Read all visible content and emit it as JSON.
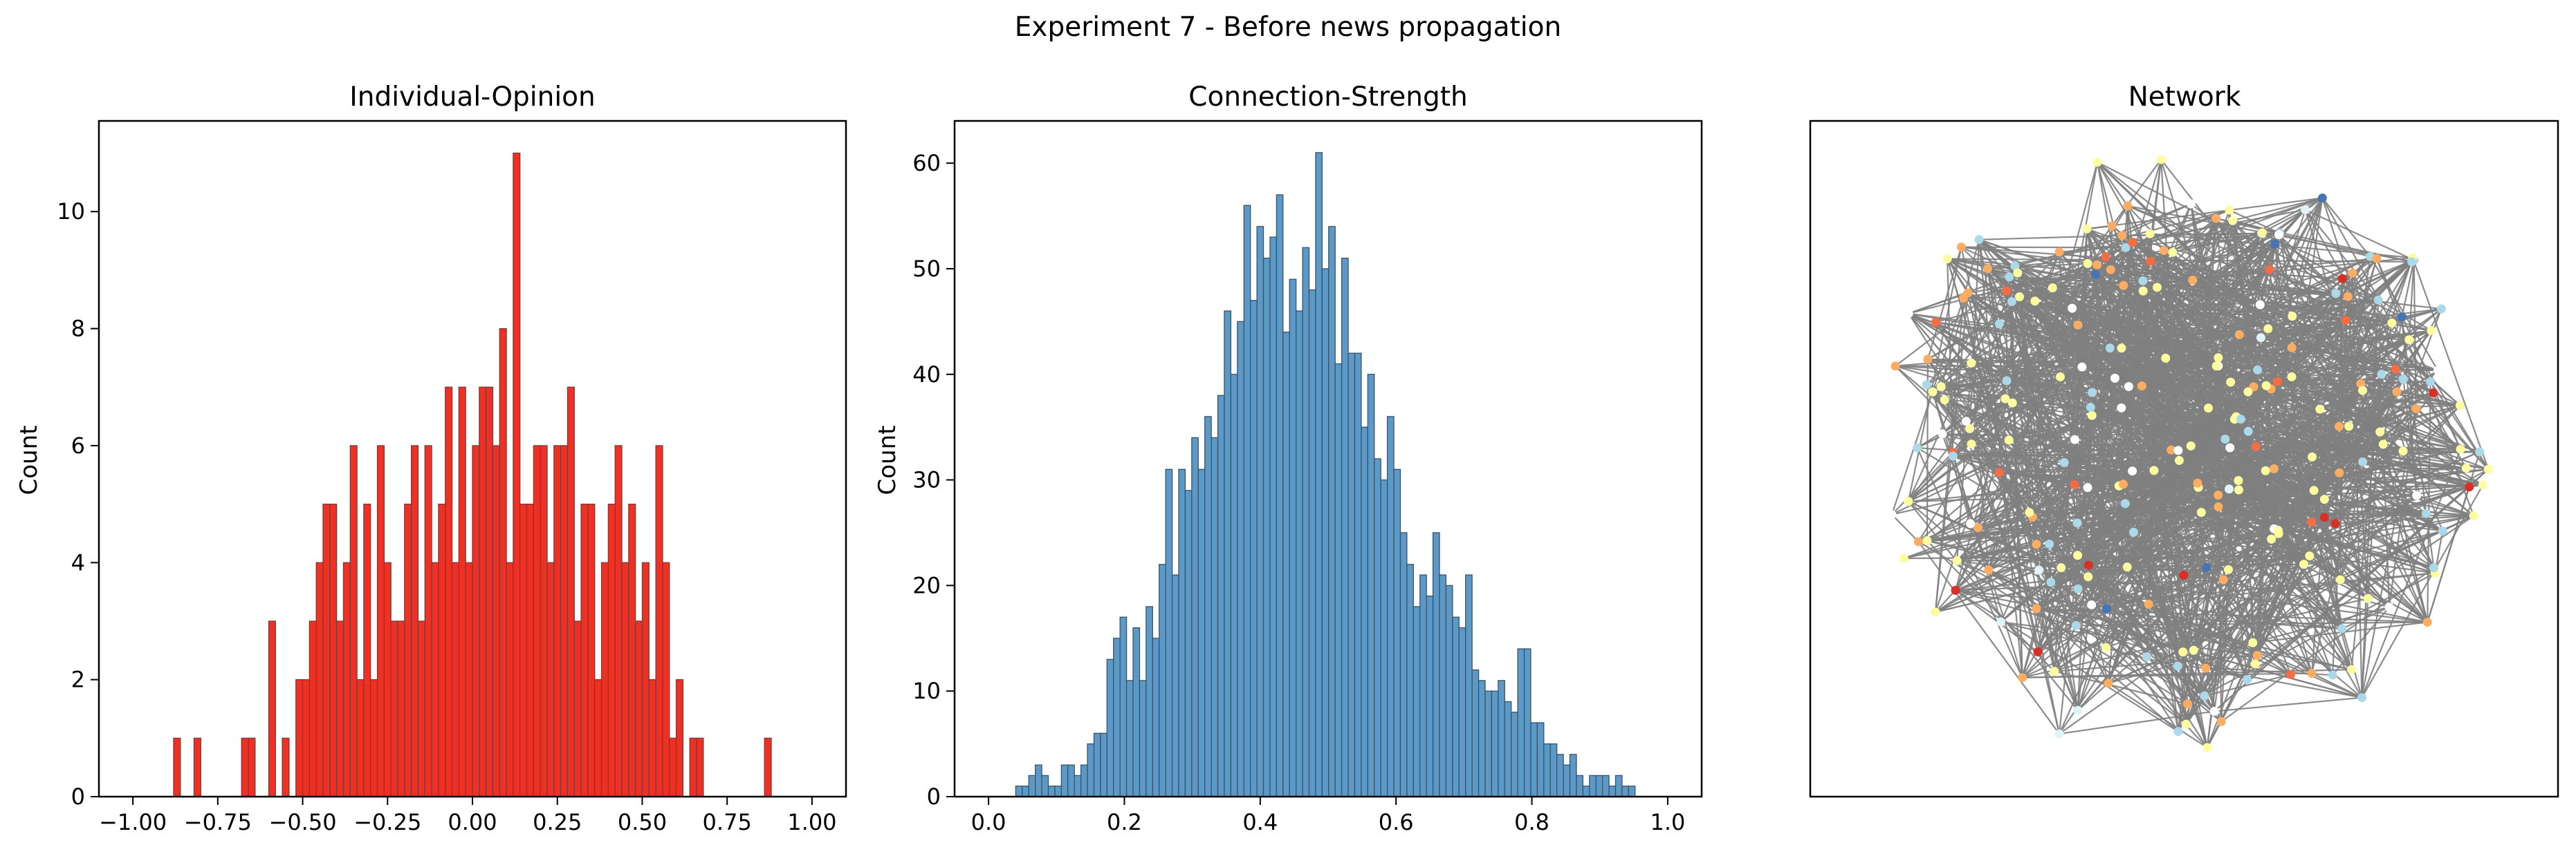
{
  "figure": {
    "suptitle": "Experiment 7 - Before news propagation"
  },
  "chart_data": [
    {
      "type": "bar",
      "title": "Individual-Opinion",
      "xlabel": "",
      "ylabel": "Count",
      "xlim": [
        -1.1,
        1.1
      ],
      "ylim": [
        0,
        11.55
      ],
      "xticks": [
        -1.0,
        -0.75,
        -0.5,
        -0.25,
        0.0,
        0.25,
        0.5,
        0.75,
        1.0
      ],
      "xtick_labels": [
        "−1.00",
        "−0.75",
        "−0.50",
        "−0.25",
        "0.00",
        "0.25",
        "0.50",
        "0.75",
        "1.00"
      ],
      "yticks": [
        0,
        2,
        4,
        6,
        8,
        10
      ],
      "ytick_labels": [
        "0",
        "2",
        "4",
        "6",
        "8",
        "10"
      ],
      "bin_start": -1.0,
      "bin_width": 0.02,
      "values": [
        0,
        0,
        0,
        0,
        0,
        0,
        1,
        0,
        0,
        1,
        0,
        0,
        0,
        0,
        0,
        0,
        1,
        1,
        0,
        0,
        3,
        0,
        1,
        0,
        2,
        2,
        3,
        4,
        5,
        5,
        3,
        4,
        6,
        2,
        5,
        2,
        6,
        4,
        3,
        3,
        5,
        6,
        3,
        6,
        4,
        5,
        7,
        4,
        7,
        4,
        6,
        7,
        7,
        6,
        8,
        4,
        11,
        5,
        5,
        6,
        6,
        4,
        6,
        6,
        7,
        3,
        5,
        5,
        2,
        4,
        5,
        6,
        4,
        5,
        3,
        4,
        2,
        6,
        4,
        1,
        2,
        0,
        1,
        1,
        0,
        0,
        0,
        0,
        0,
        0,
        0,
        0,
        0,
        1,
        0,
        0,
        0,
        0,
        0,
        0
      ],
      "bar_color": "#f03023",
      "edge_color": "#7a3b3b"
    },
    {
      "type": "bar",
      "title": "Connection-Strength",
      "xlabel": "",
      "ylabel": "Count",
      "xlim": [
        -0.05,
        1.05
      ],
      "ylim": [
        0,
        64
      ],
      "xticks": [
        0.0,
        0.2,
        0.4,
        0.6,
        0.8,
        1.0
      ],
      "xtick_labels": [
        "0.0",
        "0.2",
        "0.4",
        "0.6",
        "0.8",
        "1.0"
      ],
      "yticks": [
        0,
        10,
        20,
        30,
        40,
        50,
        60
      ],
      "ytick_labels": [
        "0",
        "10",
        "20",
        "30",
        "40",
        "50",
        "60"
      ],
      "bin_start": 0.04,
      "bin_width": 0.0096,
      "values": [
        1,
        1,
        2,
        3,
        2,
        1,
        1,
        3,
        3,
        2,
        3,
        5,
        6,
        6,
        13,
        15,
        17,
        11,
        16,
        11,
        18,
        15,
        22,
        31,
        21,
        31,
        29,
        34,
        31,
        36,
        34,
        38,
        46,
        40,
        45,
        56,
        47,
        54,
        51,
        53,
        57,
        44,
        49,
        46,
        52,
        48,
        61,
        50,
        54,
        41,
        51,
        42,
        42,
        35,
        40,
        32,
        30,
        36,
        31,
        25,
        22,
        18,
        21,
        19,
        25,
        21,
        20,
        17,
        16,
        21,
        12,
        11,
        10,
        10,
        11,
        9,
        8,
        14,
        14,
        7,
        7,
        5,
        5,
        4,
        3,
        4,
        2,
        1,
        2,
        2,
        2,
        1,
        2,
        1,
        1,
        0
      ],
      "bar_color": "#5b9ac8",
      "edge_color": "#3c5264"
    },
    {
      "type": "network",
      "title": "Network",
      "edge_color": "#808080",
      "node_colors": [
        "#fdfd9f",
        "#fdad61",
        "#abd9e9",
        "#ffffff",
        "#f46d43",
        "#d73027",
        "#4575b4",
        "#e0f3f8"
      ],
      "palette": "RdYlBu"
    }
  ]
}
